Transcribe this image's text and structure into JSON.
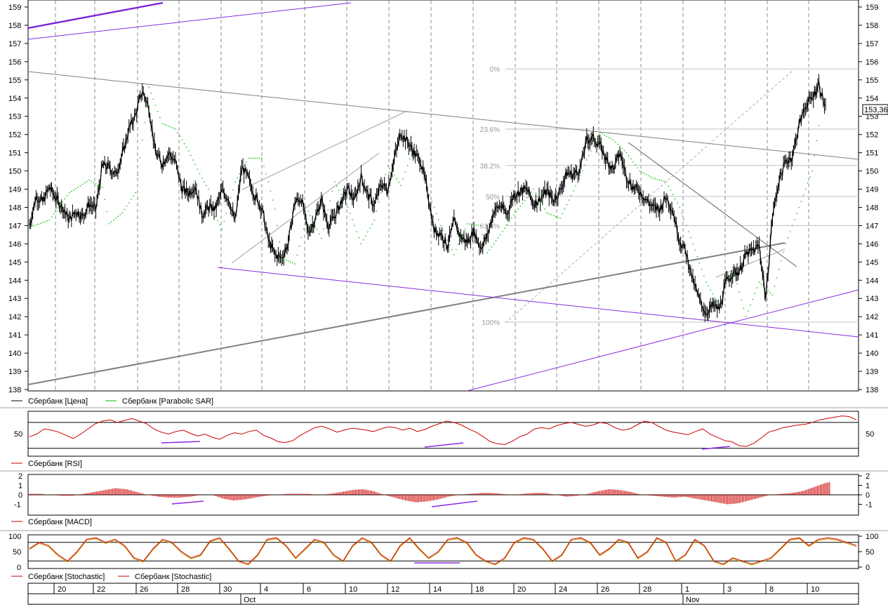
{
  "chart_data": [
    {
      "type": "candlestick",
      "ylim": [
        138,
        159
      ],
      "yticks": [
        138,
        139,
        140,
        141,
        142,
        143,
        144,
        145,
        146,
        147,
        148,
        149,
        150,
        151,
        152,
        153,
        154,
        155,
        156,
        157,
        158,
        159
      ],
      "last_price_label": "153,36",
      "last_price": 153.36,
      "legend": [
        {
          "name": "Сбербанк [Цена]",
          "color": "#000000"
        },
        {
          "name": "Сбербанк [Parabolic SAR]",
          "color": "#00c000"
        }
      ],
      "fibonacci": [
        {
          "label": "0%",
          "value": 155.6
        },
        {
          "label": "23.6%",
          "value": 152.3
        },
        {
          "label": "38.2%",
          "value": 150.3
        },
        {
          "label": "50%",
          "value": 148.6
        },
        {
          "label": "61.8%",
          "value": 147.0
        },
        {
          "label": "100%",
          "value": 141.7
        }
      ],
      "price_path": [
        [
          0,
          147.0
        ],
        [
          6,
          148.6
        ],
        [
          12,
          148.3
        ],
        [
          18,
          149.1
        ],
        [
          24,
          148.5
        ],
        [
          30,
          148.0
        ],
        [
          36,
          147.3
        ],
        [
          42,
          147.8
        ],
        [
          48,
          147.5
        ],
        [
          54,
          148.2
        ],
        [
          60,
          147.9
        ],
        [
          66,
          150.3
        ],
        [
          72,
          150.2
        ],
        [
          78,
          149.8
        ],
        [
          84,
          150.9
        ],
        [
          90,
          152.3
        ],
        [
          96,
          153.1
        ],
        [
          102,
          154.4
        ],
        [
          108,
          153.5
        ],
        [
          114,
          151.0
        ],
        [
          120,
          150.4
        ],
        [
          126,
          151.0
        ],
        [
          132,
          150.5
        ],
        [
          138,
          149.0
        ],
        [
          144,
          148.8
        ],
        [
          150,
          149.2
        ],
        [
          156,
          147.6
        ],
        [
          162,
          148.0
        ],
        [
          168,
          147.9
        ],
        [
          174,
          148.9
        ],
        [
          180,
          148.5
        ],
        [
          186,
          147.2
        ],
        [
          192,
          150.2
        ],
        [
          198,
          149.6
        ],
        [
          204,
          148.6
        ],
        [
          210,
          148.0
        ],
        [
          216,
          146.2
        ],
        [
          222,
          145.4
        ],
        [
          228,
          145.2
        ],
        [
          234,
          146.0
        ],
        [
          240,
          148.3
        ],
        [
          246,
          148.5
        ],
        [
          252,
          146.6
        ],
        [
          258,
          147.3
        ],
        [
          264,
          148.4
        ],
        [
          270,
          147.0
        ],
        [
          276,
          147.5
        ],
        [
          282,
          148.3
        ],
        [
          288,
          149.0
        ],
        [
          294,
          148.4
        ],
        [
          300,
          149.7
        ],
        [
          306,
          148.7
        ],
        [
          312,
          148.1
        ],
        [
          318,
          149.3
        ],
        [
          324,
          149.0
        ],
        [
          330,
          150.7
        ],
        [
          336,
          152.1
        ],
        [
          342,
          151.6
        ],
        [
          348,
          151.0
        ],
        [
          354,
          150.5
        ],
        [
          360,
          148.9
        ],
        [
          366,
          146.7
        ],
        [
          372,
          146.6
        ],
        [
          378,
          145.9
        ],
        [
          384,
          147.2
        ],
        [
          390,
          146.4
        ],
        [
          396,
          146.1
        ],
        [
          402,
          146.7
        ],
        [
          408,
          145.8
        ],
        [
          414,
          146.4
        ],
        [
          420,
          147.8
        ],
        [
          426,
          148.1
        ],
        [
          432,
          147.6
        ],
        [
          438,
          148.7
        ],
        [
          444,
          148.9
        ],
        [
          450,
          149.0
        ],
        [
          456,
          148.2
        ],
        [
          462,
          148.5
        ],
        [
          468,
          148.9
        ],
        [
          474,
          148.4
        ],
        [
          480,
          148.9
        ],
        [
          486,
          149.9
        ],
        [
          492,
          149.8
        ],
        [
          498,
          150.1
        ],
        [
          504,
          151.7
        ],
        [
          510,
          151.8
        ],
        [
          516,
          151.4
        ],
        [
          522,
          150.6
        ],
        [
          528,
          150.1
        ],
        [
          534,
          151.0
        ],
        [
          540,
          149.7
        ],
        [
          546,
          149.1
        ],
        [
          552,
          148.9
        ],
        [
          558,
          148.4
        ],
        [
          564,
          148.0
        ],
        [
          570,
          147.9
        ],
        [
          576,
          148.6
        ],
        [
          582,
          147.8
        ],
        [
          588,
          146.2
        ],
        [
          594,
          145.5
        ],
        [
          600,
          144.0
        ],
        [
          606,
          142.9
        ],
        [
          612,
          142.2
        ],
        [
          618,
          142.6
        ],
        [
          624,
          142.4
        ],
        [
          630,
          143.9
        ],
        [
          636,
          144.4
        ],
        [
          642,
          144.5
        ],
        [
          648,
          145.4
        ],
        [
          654,
          145.6
        ],
        [
          660,
          145.9
        ],
        [
          666,
          143.0
        ],
        [
          672,
          147.5
        ],
        [
          678,
          149.5
        ],
        [
          684,
          150.5
        ],
        [
          690,
          150.8
        ],
        [
          696,
          152.5
        ],
        [
          702,
          153.6
        ],
        [
          708,
          154.0
        ],
        [
          714,
          154.8
        ],
        [
          720,
          153.4
        ]
      ],
      "sar_path": [
        [
          0,
          146.9
        ],
        [
          18,
          147.3
        ],
        [
          36,
          148.8
        ],
        [
          54,
          149.5
        ],
        [
          66,
          149.1
        ],
        [
          72,
          147.1
        ],
        [
          84,
          147.7
        ],
        [
          96,
          148.8
        ],
        [
          108,
          154.6
        ],
        [
          120,
          152.6
        ],
        [
          132,
          152.3
        ],
        [
          144,
          151.1
        ],
        [
          156,
          149.6
        ],
        [
          162,
          149.0
        ],
        [
          168,
          147.5
        ],
        [
          174,
          146.8
        ],
        [
          186,
          149.4
        ],
        [
          198,
          150.7
        ],
        [
          210,
          150.7
        ],
        [
          216,
          149.4
        ],
        [
          222,
          147.9
        ],
        [
          228,
          145.2
        ],
        [
          240,
          144.9
        ],
        [
          252,
          147.8
        ],
        [
          264,
          146.3
        ],
        [
          276,
          149.4
        ],
        [
          288,
          148.0
        ],
        [
          300,
          146.0
        ],
        [
          312,
          147.3
        ],
        [
          324,
          150.3
        ],
        [
          336,
          149.2
        ],
        [
          348,
          151.4
        ],
        [
          360,
          149.0
        ],
        [
          372,
          147.0
        ],
        [
          384,
          145.4
        ],
        [
          396,
          147.1
        ],
        [
          408,
          147.0
        ],
        [
          414,
          145.5
        ],
        [
          426,
          146.5
        ],
        [
          438,
          147.6
        ],
        [
          456,
          149.0
        ],
        [
          468,
          147.7
        ],
        [
          480,
          147.4
        ],
        [
          492,
          148.9
        ],
        [
          504,
          150.6
        ],
        [
          516,
          152.1
        ],
        [
          528,
          151.7
        ],
        [
          540,
          151.0
        ],
        [
          552,
          150.0
        ],
        [
          564,
          149.6
        ],
        [
          576,
          149.4
        ],
        [
          588,
          148.0
        ],
        [
          600,
          146.0
        ],
        [
          612,
          143.9
        ],
        [
          624,
          142.6
        ],
        [
          636,
          144.7
        ],
        [
          648,
          142.0
        ],
        [
          660,
          143.9
        ],
        [
          672,
          143.2
        ],
        [
          684,
          146.0
        ],
        [
          696,
          148.0
        ],
        [
          708,
          150.0
        ],
        [
          714,
          152.5
        ]
      ]
    },
    {
      "type": "line",
      "legend": [
        {
          "name": "Сбербанк [RSI]",
          "color": "#cc0000"
        }
      ],
      "ytick_label": "50",
      "ylim": [
        20,
        85
      ],
      "levels": [
        30,
        70
      ],
      "values": [
        48,
        52,
        60,
        58,
        55,
        50,
        45,
        52,
        60,
        68,
        72,
        74,
        70,
        73,
        76,
        72,
        68,
        60,
        55,
        52,
        56,
        58,
        53,
        49,
        52,
        47,
        44,
        50,
        54,
        52,
        56,
        58,
        50,
        46,
        40,
        39,
        42,
        50,
        56,
        62,
        64,
        60,
        55,
        58,
        61,
        60,
        58,
        56,
        60,
        63,
        62,
        58,
        61,
        56,
        59,
        64,
        68,
        72,
        70,
        66,
        60,
        55,
        48,
        40,
        37,
        36,
        41,
        48,
        52,
        60,
        62,
        60,
        65,
        68,
        70,
        67,
        64,
        66,
        70,
        68,
        62,
        58,
        60,
        66,
        72,
        70,
        64,
        58,
        55,
        53,
        51,
        56,
        60,
        52,
        47,
        42,
        40,
        34,
        33,
        38,
        46,
        55,
        58,
        62,
        64,
        66,
        67,
        70,
        74,
        76,
        78,
        80,
        79,
        74
      ]
    },
    {
      "type": "bar",
      "legend": [
        {
          "name": "Сбербанк [MACD]",
          "color": "#cc0000"
        }
      ],
      "ylim": [
        -2,
        2
      ],
      "yticks": [
        -1,
        0,
        1,
        2
      ],
      "values": [
        0.1,
        0.1,
        0,
        -0.1,
        -0.1,
        0.1,
        0.3,
        0.5,
        0.7,
        0.6,
        0.3,
        0,
        -0.2,
        -0.3,
        -0.3,
        -0.2,
        0,
        0,
        -0.4,
        -0.6,
        -0.5,
        -0.3,
        -0.1,
        0,
        0.1,
        0.1,
        0.1,
        0,
        0.1,
        0.3,
        0.5,
        0.6,
        0.4,
        0,
        -0.3,
        -0.6,
        -0.8,
        -0.7,
        -0.5,
        -0.2,
        0,
        0.1,
        0.2,
        0.2,
        0.1,
        0,
        0.1,
        0.2,
        0.2,
        0,
        -0.2,
        -0.1,
        0.1,
        0.4,
        0.6,
        0.5,
        0.3,
        0,
        -0.1,
        -0.2,
        -0.3,
        -0.2,
        -0.4,
        -0.6,
        -0.8,
        -1.0,
        -0.9,
        -0.6,
        -0.3,
        0,
        0.1,
        0.2,
        0.4,
        0.8,
        1.2,
        1.5,
        1.6,
        1.6
      ]
    },
    {
      "type": "line",
      "legend": [
        {
          "name": "Сбербанк [Stochastic]",
          "color": "#cc0000"
        },
        {
          "name": "Сбербанк [Stochastic]",
          "color": "#cc0000"
        }
      ],
      "ylim": [
        0,
        100
      ],
      "yticks": [
        0,
        50,
        100
      ],
      "levels": [
        20,
        80
      ],
      "values": [
        60,
        80,
        70,
        40,
        20,
        50,
        90,
        95,
        80,
        90,
        70,
        30,
        20,
        60,
        90,
        80,
        50,
        30,
        40,
        85,
        95,
        60,
        20,
        10,
        40,
        90,
        95,
        70,
        30,
        60,
        90,
        80,
        40,
        20,
        70,
        95,
        80,
        40,
        20,
        70,
        95,
        60,
        30,
        50,
        90,
        95,
        80,
        40,
        20,
        10,
        30,
        80,
        95,
        90,
        60,
        20,
        40,
        90,
        95,
        80,
        40,
        60,
        90,
        80,
        30,
        50,
        95,
        80,
        20,
        40,
        90,
        70,
        20,
        10,
        30,
        20,
        10,
        20,
        30,
        60,
        90,
        95,
        70,
        90,
        95,
        90,
        80,
        70
      ]
    }
  ],
  "x_axis": {
    "days": [
      "20",
      "22",
      "26",
      "28",
      "30",
      "4",
      "6",
      "10",
      "12",
      "14",
      "18",
      "20",
      "24",
      "26",
      "28",
      "1",
      "3",
      "8",
      "10"
    ],
    "months": [
      "Oct",
      "Nov"
    ]
  }
}
